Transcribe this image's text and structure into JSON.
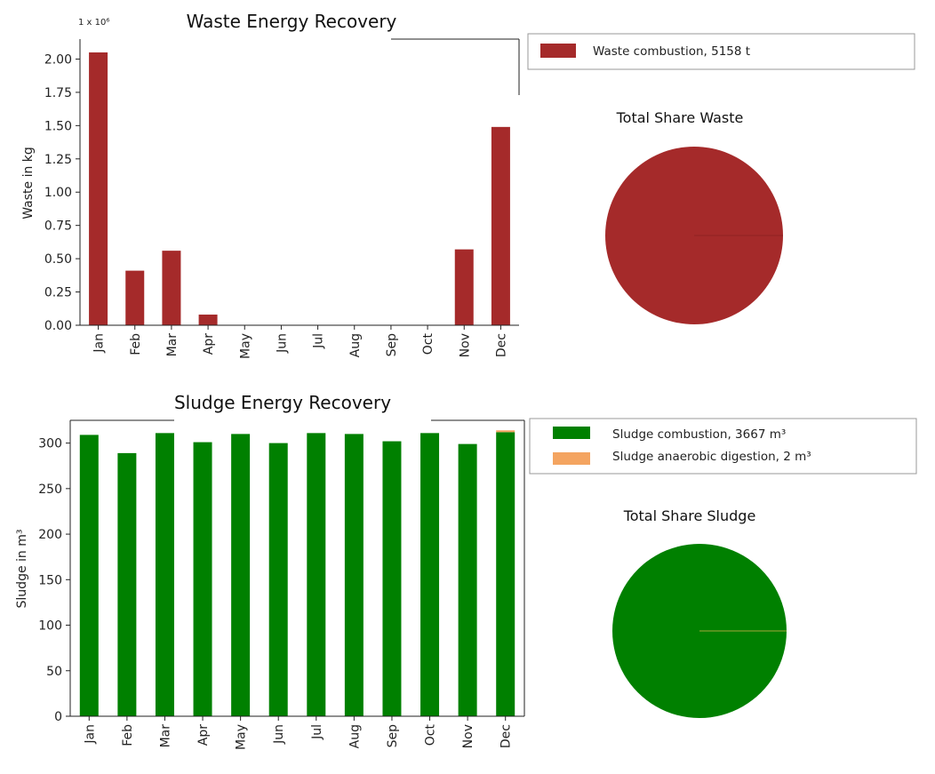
{
  "colors": {
    "waste": "#a52a2a",
    "sludge_combustion": "#008000",
    "sludge_anaerobic": "#f4a460"
  },
  "chart_data": [
    {
      "type": "bar",
      "title": "Waste Energy Recovery",
      "xlabel": "",
      "ylabel": "Waste in kg",
      "multiplier_label": "1 x 10⁶",
      "ylim": [
        0,
        2.15
      ],
      "yticks": [
        "0.00",
        "0.25",
        "0.50",
        "0.75",
        "1.00",
        "1.25",
        "1.50",
        "1.75",
        "2.00"
      ],
      "ytick_values": [
        0,
        0.25,
        0.5,
        0.75,
        1.0,
        1.25,
        1.5,
        1.75,
        2.0
      ],
      "categories": [
        "Jan",
        "Feb",
        "Mar",
        "Apr",
        "May",
        "Jun",
        "Jul",
        "Aug",
        "Sep",
        "Oct",
        "Nov",
        "Dec"
      ],
      "series": [
        {
          "name": "Waste combustion",
          "values": [
            2.05,
            0.41,
            0.56,
            0.08,
            0,
            0,
            0,
            0,
            0,
            0,
            0.57,
            1.49
          ]
        }
      ],
      "legend": [
        "Waste combustion, 5158 t"
      ]
    },
    {
      "type": "pie",
      "title": "Total Share Waste",
      "slices": [
        {
          "label": "Waste combustion",
          "value": 5158
        }
      ]
    },
    {
      "type": "bar",
      "title": "Sludge Energy Recovery",
      "xlabel": "",
      "ylabel": "Sludge in m³",
      "ylim": [
        0,
        325
      ],
      "yticks": [
        "0",
        "50",
        "100",
        "150",
        "200",
        "250",
        "300"
      ],
      "ytick_values": [
        0,
        50,
        100,
        150,
        200,
        250,
        300
      ],
      "categories": [
        "Jan",
        "Feb",
        "Mar",
        "Apr",
        "May",
        "Jun",
        "Jul",
        "Aug",
        "Sep",
        "Oct",
        "Nov",
        "Dec"
      ],
      "series": [
        {
          "name": "Sludge combustion",
          "values": [
            309,
            289,
            311,
            301,
            310,
            300,
            311,
            310,
            302,
            311,
            299,
            312
          ]
        },
        {
          "name": "Sludge anaerobic digestion",
          "values": [
            0,
            0,
            0,
            0,
            0,
            0,
            0,
            0,
            0,
            0,
            0,
            2
          ]
        }
      ],
      "legend": [
        "Sludge combustion, 3667 m³",
        "Sludge anaerobic digestion, 2 m³"
      ]
    },
    {
      "type": "pie",
      "title": "Total Share Sludge",
      "slices": [
        {
          "label": "Sludge combustion",
          "value": 3667
        },
        {
          "label": "Sludge anaerobic digestion",
          "value": 2
        }
      ]
    }
  ]
}
